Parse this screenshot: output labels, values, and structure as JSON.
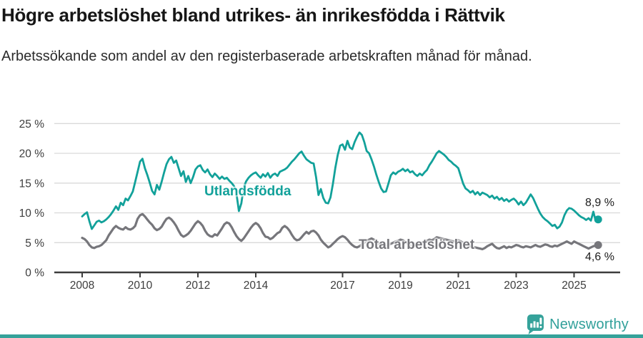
{
  "header": {
    "title": "Högre arbetslöshet bland utrikes- än inrikesfödda i Rättvik",
    "subtitle": "Arbetssökande som andel av den registerbaserade arbetskraften månad för månad."
  },
  "footer": {
    "brand": "Newsworthy",
    "brand_color": "#31a09a",
    "brand_icon": "newsworthy-bubble-barchart-icon"
  },
  "colors": {
    "accent_teal": "#12a19a",
    "series_gray": "#76767b",
    "axis": "#3d3d3d",
    "gridline": "#d9d9d9"
  },
  "chart_data": {
    "type": "line",
    "title": "Högre arbetslöshet bland utrikes- än inrikesfödda i Rättvik",
    "subtitle": "Arbetssökande som andel av den registerbaserade arbetskraften månad för månad.",
    "unit": "%",
    "grid": true,
    "legend": "inline-labels",
    "x_start_year": 2008,
    "x_interval": "monthly",
    "x_end": "2025-11",
    "ylim": [
      0,
      25
    ],
    "yticks": [
      [
        0,
        "0 %"
      ],
      [
        5,
        "5 %"
      ],
      [
        10,
        "10 %"
      ],
      [
        15,
        "15 %"
      ],
      [
        20,
        "20 %"
      ],
      [
        25,
        "25 %"
      ]
    ],
    "xticks": [
      [
        2008,
        "2008"
      ],
      [
        2010,
        "2010"
      ],
      [
        2012,
        "2012"
      ],
      [
        2014,
        "2014"
      ],
      [
        2017,
        "2017"
      ],
      [
        2019,
        "2019"
      ],
      [
        2021,
        "2021"
      ],
      [
        2023,
        "2023"
      ],
      [
        2025,
        "2025"
      ]
    ],
    "series": [
      {
        "name": "Utlandsfödda",
        "color": "#12a19a",
        "end_label": "8,9 %",
        "end_value": 8.9,
        "values": [
          9.4,
          9.8,
          10.1,
          8.6,
          7.3,
          7.9,
          8.5,
          8.7,
          8.4,
          8.6,
          8.9,
          9.3,
          9.8,
          10.4,
          11.1,
          10.5,
          11.7,
          11.3,
          12.4,
          12.1,
          12.8,
          13.6,
          15.2,
          16.9,
          18.6,
          19.1,
          17.5,
          16.4,
          15.1,
          13.7,
          13.1,
          14.7,
          13.9,
          15.3,
          16.8,
          18.2,
          19.0,
          19.4,
          18.4,
          18.8,
          17.5,
          16.2,
          17.0,
          15.2,
          16.2,
          15.0,
          16.0,
          17.3,
          17.8,
          18.0,
          17.2,
          16.8,
          17.3,
          16.5,
          16.0,
          16.6,
          16.2,
          15.7,
          16.1,
          15.7,
          15.9,
          15.4,
          15.0,
          14.5,
          13.2,
          10.3,
          11.6,
          14.3,
          15.3,
          15.9,
          16.3,
          16.6,
          16.8,
          16.3,
          15.9,
          16.5,
          16.1,
          16.7,
          15.9,
          16.4,
          16.6,
          16.2,
          16.9,
          17.1,
          17.3,
          17.6,
          18.1,
          18.6,
          19.0,
          19.5,
          20.0,
          20.3,
          19.6,
          19.0,
          18.7,
          18.4,
          18.3,
          16.0,
          13.0,
          14.0,
          12.5,
          11.7,
          11.6,
          12.6,
          14.9,
          17.6,
          19.7,
          21.3,
          21.5,
          20.6,
          22.1,
          21.0,
          20.7,
          21.9,
          22.8,
          23.5,
          23.1,
          21.9,
          20.4,
          20.0,
          19.0,
          17.8,
          16.4,
          15.2,
          14.1,
          13.5,
          13.6,
          14.9,
          16.3,
          16.8,
          16.5,
          16.9,
          17.1,
          17.4,
          17.0,
          17.3,
          16.8,
          17.0,
          16.5,
          16.2,
          16.6,
          16.3,
          16.8,
          17.2,
          18.0,
          18.6,
          19.3,
          20.0,
          20.4,
          20.1,
          19.8,
          19.4,
          18.9,
          18.6,
          18.2,
          17.9,
          17.5,
          16.2,
          14.9,
          14.1,
          13.8,
          13.4,
          13.7,
          13.1,
          13.5,
          13.0,
          13.4,
          13.2,
          13.0,
          12.6,
          12.9,
          12.4,
          12.7,
          12.2,
          12.5,
          12.0,
          12.3,
          11.9,
          12.2,
          12.4,
          12.0,
          11.4,
          11.9,
          11.3,
          11.7,
          12.4,
          13.1,
          12.5,
          11.6,
          10.7,
          9.9,
          9.3,
          8.9,
          8.6,
          8.2,
          7.8,
          8.0,
          7.4,
          7.7,
          8.4,
          9.6,
          10.4,
          10.8,
          10.7,
          10.4,
          10.0,
          9.6,
          9.3,
          9.1,
          8.8,
          9.1,
          8.7,
          10.2,
          8.6,
          8.9
        ]
      },
      {
        "name": "Total arbetslöshet",
        "color": "#76767b",
        "end_label": "4,6 %",
        "end_value": 4.6,
        "values": [
          5.8,
          5.6,
          5.2,
          4.6,
          4.2,
          4.1,
          4.3,
          4.4,
          4.6,
          5.0,
          5.4,
          6.2,
          6.8,
          7.4,
          7.8,
          7.5,
          7.3,
          7.2,
          7.6,
          7.3,
          7.2,
          7.4,
          7.8,
          9.0,
          9.6,
          9.8,
          9.4,
          8.9,
          8.4,
          8.0,
          7.4,
          7.1,
          7.3,
          7.7,
          8.4,
          9.0,
          9.2,
          8.9,
          8.4,
          7.8,
          7.0,
          6.3,
          6.0,
          6.2,
          6.5,
          7.0,
          7.6,
          8.2,
          8.6,
          8.3,
          7.8,
          7.0,
          6.4,
          6.1,
          6.0,
          6.4,
          6.2,
          6.8,
          7.4,
          8.1,
          8.4,
          8.2,
          7.6,
          6.8,
          6.1,
          5.6,
          5.3,
          5.7,
          6.3,
          6.9,
          7.5,
          8.0,
          8.3,
          8.0,
          7.4,
          6.6,
          6.0,
          5.9,
          5.6,
          5.8,
          6.2,
          6.6,
          6.8,
          7.5,
          7.8,
          7.5,
          7.0,
          6.3,
          5.7,
          5.4,
          5.5,
          5.9,
          6.4,
          6.8,
          6.5,
          6.9,
          7.0,
          6.7,
          6.2,
          5.5,
          5.0,
          4.6,
          4.2,
          4.4,
          4.8,
          5.2,
          5.6,
          5.9,
          6.1,
          5.9,
          5.5,
          5.0,
          4.6,
          4.3,
          4.2,
          4.4,
          4.7,
          5.0,
          5.3,
          5.5,
          5.7,
          5.5,
          5.2,
          4.8,
          4.5,
          4.3,
          4.4,
          4.6,
          4.8,
          5.0,
          5.2,
          5.3,
          5.5,
          5.4,
          5.1,
          4.8,
          4.6,
          4.4,
          4.5,
          4.7,
          4.9,
          5.0,
          5.2,
          5.3,
          5.5,
          5.4,
          5.6,
          5.9,
          5.8,
          5.7,
          5.6,
          5.5,
          5.4,
          5.3,
          5.2,
          5.3,
          5.4,
          5.2,
          5.0,
          4.8,
          4.6,
          4.4,
          4.3,
          4.2,
          4.1,
          4.0,
          3.9,
          4.1,
          4.4,
          4.6,
          4.8,
          4.4,
          4.1,
          4.0,
          4.2,
          4.4,
          4.1,
          4.3,
          4.2,
          4.4,
          4.6,
          4.5,
          4.3,
          4.2,
          4.4,
          4.3,
          4.2,
          4.4,
          4.6,
          4.4,
          4.3,
          4.5,
          4.7,
          4.6,
          4.4,
          4.3,
          4.5,
          4.4,
          4.6,
          4.8,
          5.0,
          5.2,
          5.0,
          4.8,
          5.2,
          5.0,
          4.8,
          4.6,
          4.4,
          4.2,
          4.0,
          4.2,
          4.4,
          4.5,
          4.6
        ]
      }
    ]
  }
}
